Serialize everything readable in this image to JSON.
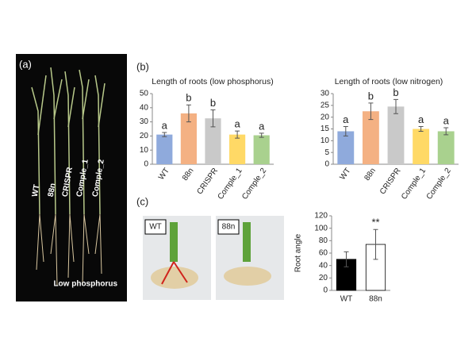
{
  "panel_labels": [
    "(a)",
    "(b)",
    "(c)"
  ],
  "photo_a": {
    "labels": [
      "WT",
      "88n",
      "CRISPR",
      "Comple_1",
      "Comple_2"
    ],
    "caption": "Low phosphorus"
  },
  "photo_c": {
    "labels": [
      "WT",
      "88n"
    ]
  },
  "chart_data": [
    {
      "type": "bar",
      "title": "Length of roots (low phosphorus)",
      "categories": [
        "WT",
        "88n",
        "CRISPR",
        "Comple_1",
        "Comple_2"
      ],
      "values": [
        21,
        36,
        32.5,
        21,
        20.5
      ],
      "errors": [
        1.5,
        6,
        6,
        2.5,
        1.5
      ],
      "colors": [
        "#8faadc",
        "#f4b183",
        "#c9c9c9",
        "#ffd966",
        "#a9d18e"
      ],
      "significance": [
        "a",
        "b",
        "b",
        "a",
        "a"
      ],
      "ylim": [
        0,
        50
      ],
      "yticks": [
        0,
        10,
        20,
        30,
        40,
        50
      ]
    },
    {
      "type": "bar",
      "title": "Length of roots (low nitrogen)",
      "categories": [
        "WT",
        "88n",
        "CRISPR",
        "Comple_1",
        "Comple_2"
      ],
      "values": [
        14,
        22.5,
        24.5,
        15,
        14
      ],
      "errors": [
        2,
        3.5,
        3,
        1,
        1.5
      ],
      "colors": [
        "#8faadc",
        "#f4b183",
        "#c9c9c9",
        "#ffd966",
        "#a9d18e"
      ],
      "significance": [
        "a",
        "b",
        "b",
        "a",
        "a"
      ],
      "ylim": [
        0,
        30
      ],
      "yticks": [
        0,
        5,
        10,
        15,
        20,
        25,
        30
      ]
    },
    {
      "type": "bar",
      "y_label": "Root angle",
      "categories": [
        "WT",
        "88n"
      ],
      "values": [
        50,
        74
      ],
      "errors": [
        12,
        24
      ],
      "colors": [
        "#000000",
        "#ffffff"
      ],
      "significance": [
        null,
        "**"
      ],
      "ylim": [
        0,
        120
      ],
      "yticks": [
        0,
        20,
        40,
        60,
        80,
        100,
        120
      ]
    }
  ]
}
